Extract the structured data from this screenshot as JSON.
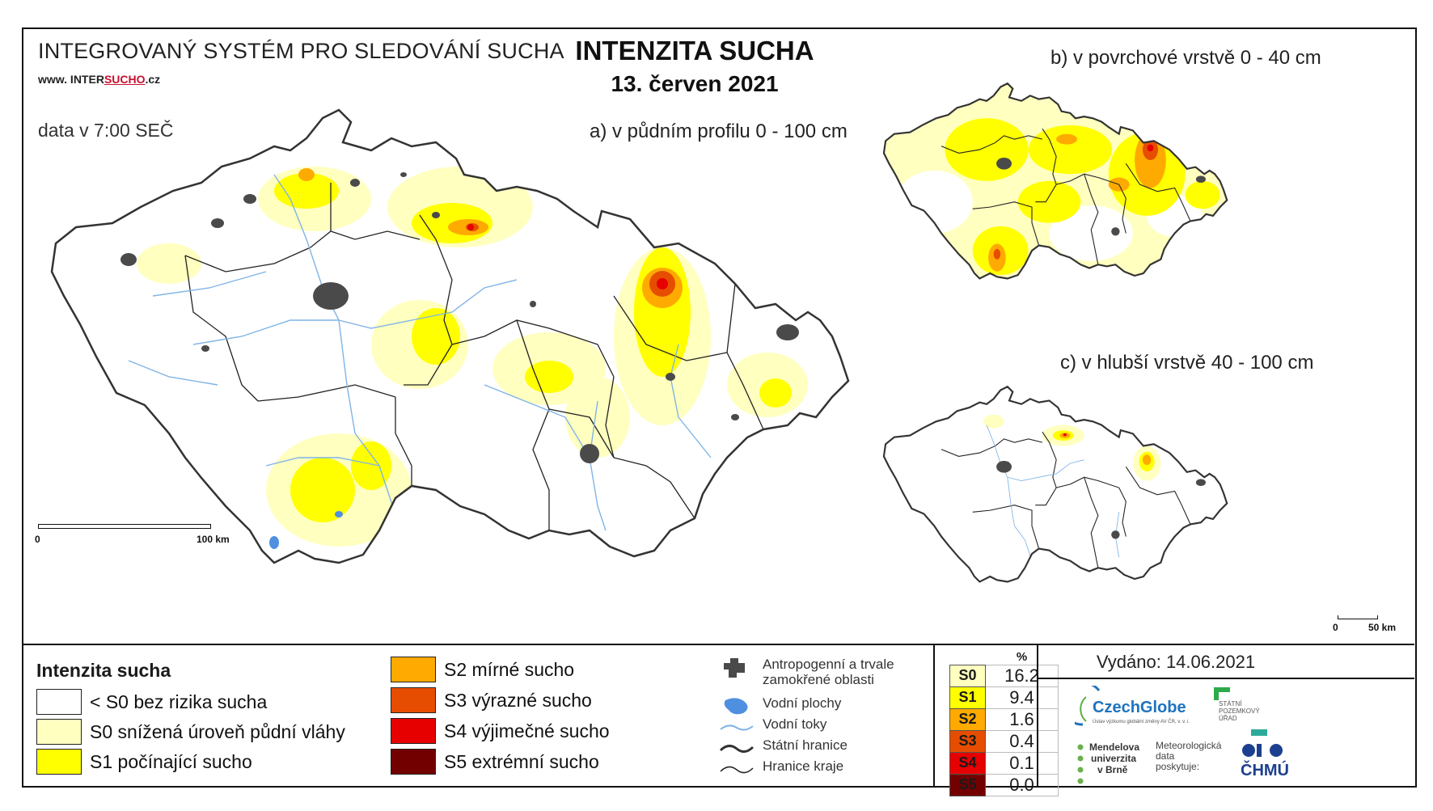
{
  "header": {
    "system_title": "INTEGROVANÝ SYSTÉM PRO SLEDOVÁNÍ SUCHA",
    "url_prefix": "www. INTER",
    "url_accent": "SUCHO",
    "url_suffix": ".cz",
    "data_time": "data v 7:00 SEČ",
    "main_title": "INTENZITA SUCHA",
    "date": "13. červen 2021"
  },
  "maps": {
    "a_label": "a) v půdním profilu 0 - 100 cm",
    "b_label": "b) v povrchové vrstvě 0 - 40 cm",
    "c_label": "c) v hlubší vrstvě 40 - 100 cm"
  },
  "scalebars": {
    "main": {
      "start": "0",
      "end": "100 km"
    },
    "small": {
      "start": "0",
      "end": "50 km"
    }
  },
  "legend": {
    "title": "Intenzita sucha",
    "classes": [
      {
        "label": "< S0 bez rizika sucha",
        "color": "#ffffff"
      },
      {
        "label": "S0 snížená úroveň půdní vláhy",
        "color": "#ffffc0"
      },
      {
        "label": "S1 počínající sucho",
        "color": "#ffff00"
      },
      {
        "label": "S2 mírné sucho",
        "color": "#ffaa00"
      },
      {
        "label": "S3 výrazné sucho",
        "color": "#e64d00"
      },
      {
        "label": "S4 výjimečné sucho",
        "color": "#e60000"
      },
      {
        "label": "S5 extrémní sucho",
        "color": "#730000"
      }
    ],
    "symbols": [
      {
        "label": "Antropogenní a trvale zamokřené oblasti",
        "icon": "anthropogenic-area-icon"
      },
      {
        "label": "Vodní plochy",
        "icon": "water-body-icon"
      },
      {
        "label": "Vodní toky",
        "icon": "river-icon"
      },
      {
        "label": "Státní hranice",
        "icon": "state-border-icon"
      },
      {
        "label": "Hranice kraje",
        "icon": "region-border-icon"
      }
    ]
  },
  "stats": {
    "unit": "%",
    "rows": [
      {
        "code": "S0",
        "value": "16.2",
        "color": "#ffffc0",
        "text_color": "#111111"
      },
      {
        "code": "S1",
        "value": "9.4",
        "color": "#ffff00",
        "text_color": "#111111"
      },
      {
        "code": "S2",
        "value": "1.6",
        "color": "#ffaa00",
        "text_color": "#111111"
      },
      {
        "code": "S3",
        "value": "0.4",
        "color": "#e64d00",
        "text_color": "#111111"
      },
      {
        "code": "S4",
        "value": "0.1",
        "color": "#e60000",
        "text_color": "#111111"
      },
      {
        "code": "S5",
        "value": "0.0",
        "color": "#730000",
        "text_color": "#111111"
      }
    ]
  },
  "footer": {
    "issued": "Vydáno: 14.06.2021",
    "logos": {
      "czechglobe": "CzechGlobe",
      "czechglobe_sub": "Ústav výzkumu globální změny AV ČR, v. v. i.",
      "spu": "STÁTNÍ POZEMKOVÝ ÚŘAD",
      "mendel_1": "Mendelova",
      "mendel_2": "univerzita",
      "mendel_3": "v Brně",
      "meteo_1": "Meteorologická",
      "meteo_2": "data",
      "meteo_3": "poskytuje:",
      "chmu": "ČHMÚ"
    }
  }
}
